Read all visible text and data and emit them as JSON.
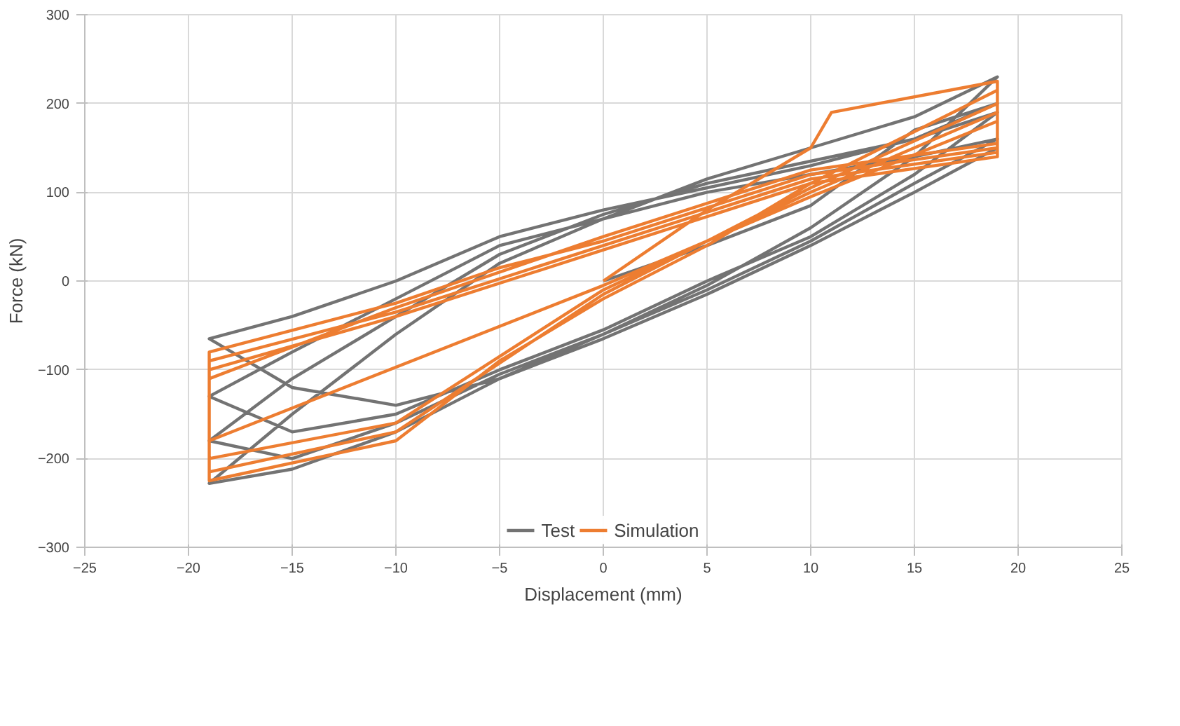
{
  "chart_data": {
    "type": "line",
    "xlabel": "Displacement (mm)",
    "ylabel": "Force (kN)",
    "xlim": [
      -25,
      25
    ],
    "ylim": [
      -300,
      300
    ],
    "xticks": [
      -25,
      -20,
      -15,
      -10,
      -5,
      0,
      5,
      10,
      15,
      20,
      25
    ],
    "yticks": [
      -300,
      -200,
      -100,
      0,
      100,
      200,
      300
    ],
    "grid": true,
    "legend": "bottom",
    "marker": "none",
    "line_style": "solid",
    "series": [
      {
        "name": "Test",
        "color": "#737373",
        "x": [
          0,
          5,
          10,
          15,
          19,
          15,
          10,
          5,
          0,
          -5,
          -10,
          -15,
          -19,
          -15,
          -10,
          -5,
          0,
          5,
          10,
          15,
          19,
          15,
          10,
          5,
          0,
          -5,
          -10,
          -15,
          -19,
          -15,
          -10,
          -5,
          0,
          5,
          10,
          15,
          19,
          15,
          10,
          5,
          0,
          -5,
          -10,
          -15,
          -19,
          -15,
          -10,
          -5,
          0,
          5,
          10,
          15,
          19,
          15,
          10,
          5,
          0,
          -5,
          -10,
          -15,
          -19,
          -15,
          -10,
          -5,
          0,
          5,
          10,
          15,
          19
        ],
        "values": [
          0,
          40,
          85,
          170,
          200,
          160,
          130,
          105,
          80,
          50,
          0,
          -40,
          -65,
          -120,
          -140,
          -110,
          -60,
          -10,
          45,
          110,
          160,
          140,
          120,
          100,
          70,
          40,
          -20,
          -80,
          -130,
          -170,
          -150,
          -100,
          -55,
          0,
          50,
          120,
          190,
          160,
          135,
          110,
          75,
          30,
          -40,
          -110,
          -180,
          -200,
          -160,
          -105,
          -60,
          -5,
          60,
          140,
          230,
          185,
          150,
          115,
          70,
          20,
          -60,
          -150,
          -228,
          -212,
          -170,
          -110,
          -65,
          -15,
          40,
          100,
          150
        ]
      },
      {
        "name": "Simulation",
        "color": "#ed7d31",
        "x": [
          0,
          5,
          10,
          11,
          19,
          19,
          10,
          0,
          -5,
          -10,
          -19,
          -19,
          -10,
          -5,
          0,
          5,
          10,
          19,
          19,
          10,
          0,
          -10,
          -19,
          -19,
          -10,
          0,
          10,
          19,
          19,
          10,
          0,
          -10,
          -19,
          -19,
          -10,
          0,
          10,
          19,
          19,
          10,
          0,
          -10,
          -19,
          -19,
          0,
          10,
          19
        ],
        "values": [
          0,
          80,
          150,
          190,
          225,
          150,
          120,
          45,
          15,
          -25,
          -80,
          -225,
          -180,
          -90,
          -20,
          40,
          110,
          215,
          145,
          115,
          40,
          -35,
          -90,
          -215,
          -170,
          -15,
          105,
          200,
          140,
          110,
          35,
          -40,
          -100,
          -200,
          -160,
          -10,
          100,
          190,
          155,
          125,
          50,
          -30,
          -110,
          -180,
          -5,
          95,
          180
        ]
      }
    ]
  }
}
